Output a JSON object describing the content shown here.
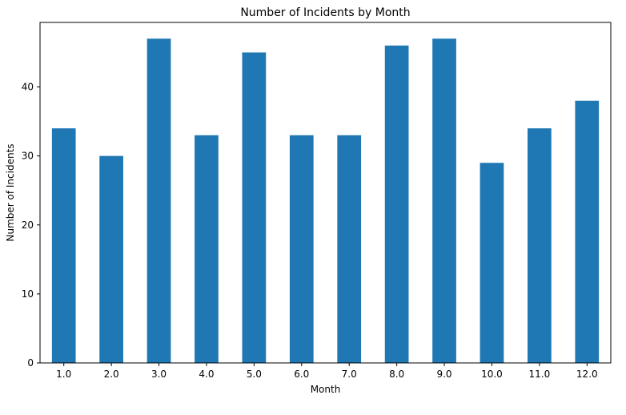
{
  "chart_data": {
    "type": "bar",
    "title": "Number of Incidents by Month",
    "xlabel": "Month",
    "ylabel": "Number of Incidents",
    "categories": [
      "1.0",
      "2.0",
      "3.0",
      "4.0",
      "5.0",
      "6.0",
      "7.0",
      "8.0",
      "9.0",
      "10.0",
      "11.0",
      "12.0"
    ],
    "values": [
      34,
      30,
      47,
      33,
      45,
      33,
      33,
      46,
      47,
      29,
      34,
      38
    ],
    "ylim": [
      0,
      49.35
    ],
    "yticks": [
      0,
      10,
      20,
      30,
      40
    ],
    "ytick_labels": [
      "0",
      "10",
      "20",
      "30",
      "40"
    ],
    "grid": false,
    "bar_color": "#1f77b4"
  }
}
